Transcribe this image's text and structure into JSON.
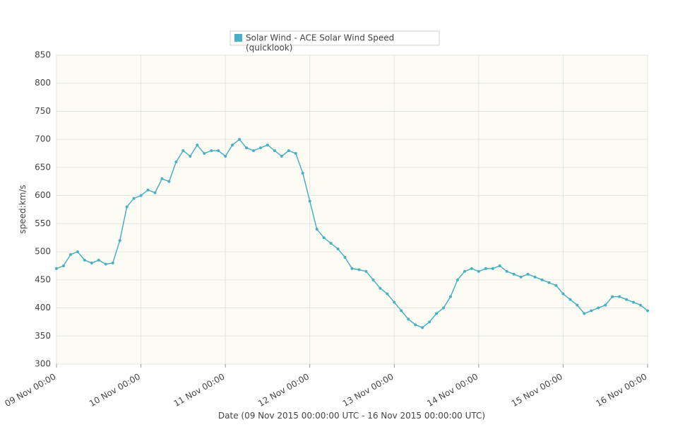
{
  "chart_data": {
    "type": "line",
    "legend_text": [
      "Solar Wind - ACE Solar Wind Speed",
      "(quicklook)"
    ],
    "ylabel": "speed:km/s",
    "xlabel": "Date (09 Nov 2015 00:00:00 UTC - 16 Nov 2015 00:00:00 UTC)",
    "ylim": [
      300,
      850
    ],
    "yticks": [
      300,
      350,
      400,
      450,
      500,
      550,
      600,
      650,
      700,
      750,
      800,
      850
    ],
    "xlim": [
      "09 Nov 00:00",
      "16 Nov 00:00"
    ],
    "xticks": [
      "09 Nov 00:00",
      "10 Nov 00:00",
      "11 Nov 00:00",
      "12 Nov 00:00",
      "13 Nov 00:00",
      "14 Nov 00:00",
      "15 Nov 00:00",
      "16 Nov 00:00"
    ],
    "grid": true,
    "series": [
      {
        "name": "Solar Wind - ACE Solar Wind Speed (quicklook)",
        "color": "#4bafc4",
        "x": [
          "09 Nov 00:00",
          "09 Nov 02:00",
          "09 Nov 04:00",
          "09 Nov 06:00",
          "09 Nov 08:00",
          "09 Nov 10:00",
          "09 Nov 12:00",
          "09 Nov 14:00",
          "09 Nov 16:00",
          "09 Nov 18:00",
          "09 Nov 20:00",
          "09 Nov 22:00",
          "10 Nov 00:00",
          "10 Nov 02:00",
          "10 Nov 04:00",
          "10 Nov 06:00",
          "10 Nov 08:00",
          "10 Nov 10:00",
          "10 Nov 12:00",
          "10 Nov 14:00",
          "10 Nov 16:00",
          "10 Nov 18:00",
          "10 Nov 20:00",
          "10 Nov 22:00",
          "11 Nov 00:00",
          "11 Nov 02:00",
          "11 Nov 04:00",
          "11 Nov 06:00",
          "11 Nov 08:00",
          "11 Nov 10:00",
          "11 Nov 12:00",
          "11 Nov 14:00",
          "11 Nov 16:00",
          "11 Nov 18:00",
          "11 Nov 20:00",
          "11 Nov 22:00",
          "12 Nov 00:00",
          "12 Nov 02:00",
          "12 Nov 04:00",
          "12 Nov 06:00",
          "12 Nov 08:00",
          "12 Nov 10:00",
          "12 Nov 12:00",
          "12 Nov 14:00",
          "12 Nov 16:00",
          "12 Nov 18:00",
          "12 Nov 20:00",
          "12 Nov 22:00",
          "13 Nov 00:00",
          "13 Nov 02:00",
          "13 Nov 04:00",
          "13 Nov 06:00",
          "13 Nov 08:00",
          "13 Nov 10:00",
          "13 Nov 12:00",
          "13 Nov 14:00",
          "13 Nov 16:00",
          "13 Nov 18:00",
          "13 Nov 20:00",
          "13 Nov 22:00",
          "14 Nov 00:00",
          "14 Nov 02:00",
          "14 Nov 04:00",
          "14 Nov 06:00",
          "14 Nov 08:00",
          "14 Nov 10:00",
          "14 Nov 12:00",
          "14 Nov 14:00",
          "14 Nov 16:00",
          "14 Nov 18:00",
          "14 Nov 20:00",
          "14 Nov 22:00",
          "15 Nov 00:00",
          "15 Nov 02:00",
          "15 Nov 04:00",
          "15 Nov 06:00",
          "15 Nov 08:00",
          "15 Nov 10:00",
          "15 Nov 12:00",
          "15 Nov 14:00",
          "15 Nov 16:00",
          "15 Nov 18:00",
          "15 Nov 20:00",
          "15 Nov 22:00",
          "16 Nov 00:00"
        ],
        "values": [
          470,
          475,
          495,
          500,
          485,
          480,
          485,
          478,
          480,
          520,
          580,
          595,
          600,
          610,
          605,
          630,
          625,
          660,
          680,
          670,
          690,
          675,
          680,
          680,
          670,
          690,
          700,
          685,
          680,
          685,
          690,
          680,
          670,
          680,
          675,
          640,
          590,
          540,
          525,
          515,
          505,
          490,
          470,
          468,
          465,
          450,
          435,
          425,
          410,
          395,
          380,
          370,
          365,
          375,
          390,
          400,
          420,
          450,
          465,
          470,
          465,
          470,
          470,
          475,
          465,
          460,
          455,
          460,
          455,
          450,
          445,
          440,
          425,
          415,
          405,
          390,
          395,
          400,
          405,
          420,
          420,
          415,
          410,
          405,
          395
        ]
      }
    ]
  }
}
